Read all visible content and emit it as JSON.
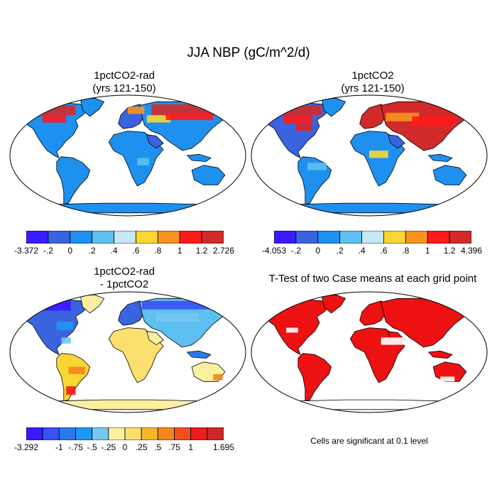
{
  "title": "JJA NBP (gC/m^2/d)",
  "panels": [
    {
      "title1": "1pctCO2-rad",
      "title2": "(yrs 121-150)",
      "scheme": "rad"
    },
    {
      "title1": "1pctCO2",
      "title2": "(yrs 121-150)",
      "scheme": "co2"
    },
    {
      "title1": "1pctCO2-rad",
      "title2": "- 1pctCO2",
      "scheme": "diff"
    },
    {
      "title1": "T-Test of two Case means at each grid point",
      "title2": "",
      "scheme": "ttest"
    }
  ],
  "colorbars": [
    {
      "colors": [
        "#3a1aff",
        "#3a63e0",
        "#1e90f0",
        "#5ec0f0",
        "#c4e8f5",
        "#f9d633",
        "#f7931e",
        "#ff1a1a",
        "#d22a2a"
      ],
      "ticks": [
        "-3.372",
        "-.2",
        "0",
        ".2",
        ".4",
        ".6",
        ".8",
        "1",
        "1.2",
        "2.726"
      ]
    },
    {
      "colors": [
        "#3a1aff",
        "#3a63e0",
        "#1e90f0",
        "#5ec0f0",
        "#c4e8f5",
        "#f9d633",
        "#f7931e",
        "#ff1a1a",
        "#d22a2a"
      ],
      "ticks": [
        "-4.053",
        "-.2",
        "0",
        ".2",
        ".4",
        ".6",
        ".8",
        "1",
        "1.2",
        "4.396"
      ]
    },
    {
      "colors": [
        "#3a1aff",
        "#3a50f0",
        "#2a78ec",
        "#1e98f0",
        "#74c8f2",
        "#fbf0a0",
        "#fbe070",
        "#f7b52b",
        "#f4861e",
        "#f05020",
        "#ee1c1c",
        "#d02828"
      ],
      "ticks": [
        "-3.292",
        "",
        "-1",
        "-.75",
        "-.5",
        "-.25",
        "0",
        ".25",
        ".5",
        ".75",
        "1",
        "",
        "1.695"
      ]
    }
  ],
  "note": "Cells are significant at 0.1 level"
}
